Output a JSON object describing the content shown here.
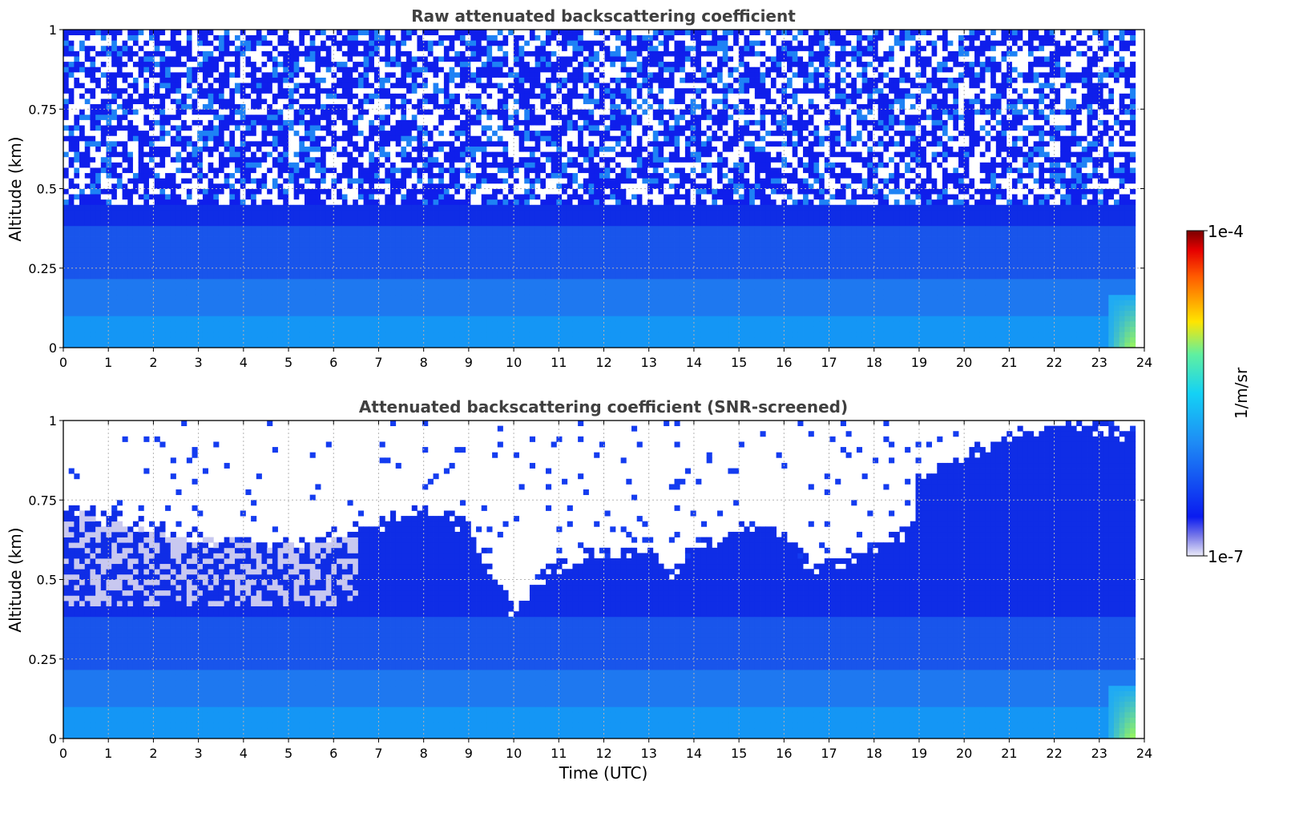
{
  "chart_data": {
    "type": "heatmap",
    "panels": [
      {
        "title": "Raw attenuated backscattering coefficient",
        "xlabel": "",
        "ylabel": "Altitude (km)",
        "xlim": [
          0,
          24
        ],
        "ylim": [
          0,
          1
        ],
        "x_ticks": [
          "0",
          "1",
          "2",
          "3",
          "4",
          "5",
          "6",
          "7",
          "8",
          "9",
          "10",
          "11",
          "12",
          "13",
          "14",
          "15",
          "16",
          "17",
          "18",
          "19",
          "20",
          "21",
          "22",
          "23",
          "24"
        ],
        "y_ticks": [
          "0",
          "0.25",
          "0.5",
          "0.75",
          "1"
        ],
        "grid": true,
        "data_end_time": 23.8,
        "screened": false
      },
      {
        "title": "Attenuated backscattering coefficient (SNR-screened)",
        "xlabel": "Time (UTC)",
        "ylabel": "Altitude (km)",
        "xlim": [
          0,
          24
        ],
        "ylim": [
          0,
          1
        ],
        "x_ticks": [
          "0",
          "1",
          "2",
          "3",
          "4",
          "5",
          "6",
          "7",
          "8",
          "9",
          "10",
          "11",
          "12",
          "13",
          "14",
          "15",
          "16",
          "17",
          "18",
          "19",
          "20",
          "21",
          "22",
          "23",
          "24"
        ],
        "y_ticks": [
          "0",
          "0.25",
          "0.5",
          "0.75",
          "1"
        ],
        "grid": true,
        "data_end_time": 23.8,
        "screened": true,
        "screening_top_km": [
          [
            0,
            0.72
          ],
          [
            1,
            0.7
          ],
          [
            2,
            0.66
          ],
          [
            3,
            0.64
          ],
          [
            4,
            0.62
          ],
          [
            5,
            0.62
          ],
          [
            6,
            0.64
          ],
          [
            7,
            0.68
          ],
          [
            8,
            0.72
          ],
          [
            9,
            0.66
          ],
          [
            9.6,
            0.5
          ],
          [
            10,
            0.4
          ],
          [
            10.4,
            0.47
          ],
          [
            11,
            0.55
          ],
          [
            12,
            0.58
          ],
          [
            13,
            0.6
          ],
          [
            13.5,
            0.52
          ],
          [
            14,
            0.6
          ],
          [
            15,
            0.65
          ],
          [
            16,
            0.66
          ],
          [
            16.5,
            0.55
          ],
          [
            17,
            0.55
          ],
          [
            18,
            0.6
          ],
          [
            18.8,
            0.66
          ],
          [
            19,
            0.82
          ],
          [
            20,
            0.88
          ],
          [
            21,
            0.95
          ],
          [
            22,
            0.98
          ],
          [
            23,
            0.98
          ],
          [
            23.8,
            0.95
          ]
        ]
      }
    ],
    "colorbar": {
      "label": "1/m/sr",
      "min_label": "1e-7",
      "max_label": "1e-4",
      "scale": "log",
      "colormap": "jet"
    }
  },
  "colors": {
    "low_end": "#eaeaf8",
    "blue": "#0a1bf0",
    "light_blue": "#1e8cf5",
    "cyan": "#14d2f5",
    "yellow": "#ffe500",
    "red": "#e60000",
    "dark_red": "#7a0000",
    "title": "#404040",
    "grid": "#b4b4b4"
  }
}
